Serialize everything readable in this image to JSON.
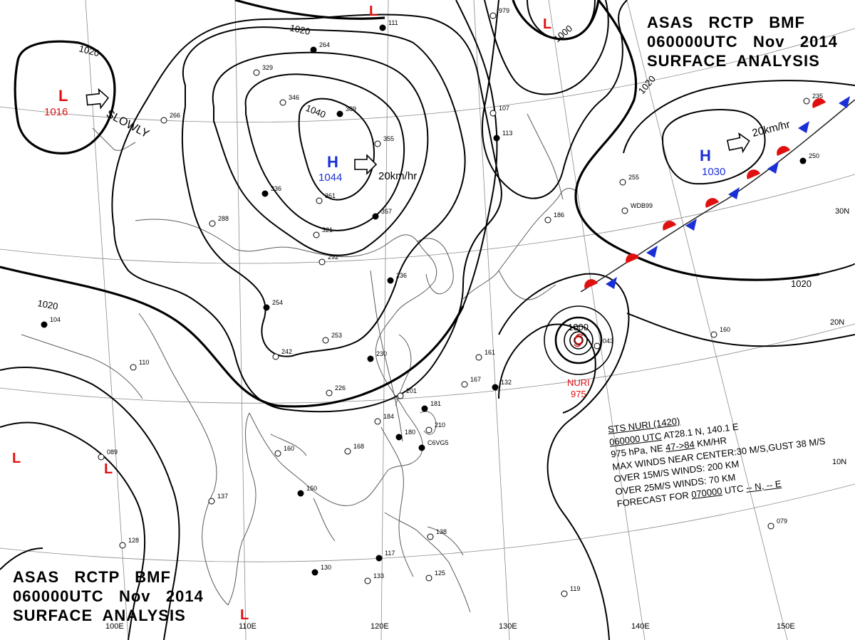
{
  "header": {
    "line1": "ASAS   RCTP   BMF",
    "line2": "060000UTC   Nov   2014",
    "line3": "SURFACE  ANALYSIS"
  },
  "colors": {
    "low": "#e01010",
    "high": "#1a2fd6",
    "warm_front": "#e01010",
    "cold_front": "#1a2fd6",
    "isobar": "#000000",
    "grid": "#777777",
    "coast": "#555555"
  },
  "pressure_centers": [
    {
      "type": "L",
      "value": "1016"
    },
    {
      "type": "H",
      "value": "1044"
    },
    {
      "type": "H",
      "value": "1030"
    },
    {
      "type": "L",
      "value": ""
    },
    {
      "type": "L",
      "value": ""
    },
    {
      "type": "L",
      "value": ""
    },
    {
      "type": "L",
      "value": ""
    },
    {
      "type": "L",
      "value": ""
    }
  ],
  "motion": [
    {
      "label": "SLOWLY"
    },
    {
      "label": "20km/hr"
    },
    {
      "label": "20km/hr"
    }
  ],
  "isobar_labels": [
    "1020",
    "1020",
    "1040",
    "1000",
    "1020",
    "1020",
    "1020",
    "1000"
  ],
  "typhoon": {
    "name": "NURI",
    "pressure": "975",
    "info": {
      "l1": "STS  NURI  (1420)",
      "l2a": "060000 UTC",
      "l2b": "  AT28.1 N, 140.1 E",
      "l3a": "975 hPa, NE  ",
      "l3b": "47->84",
      "l3c": " KM/HR",
      "l4": "MAX WINDS NEAR CENTER:30 M/S,GUST 38 M/S",
      "l5": "OVER 15M/S WINDS: 200 KM",
      "l6": "OVER 25M/S WINDS: 70 KM",
      "l7a": "FORECAST FOR ",
      "l7b": "070000",
      "l7c": " UTC ",
      "l7d": "-- N, -- E"
    }
  },
  "longitude_labels": [
    "100E",
    "110E",
    "120E",
    "130E",
    "140E",
    "150E"
  ],
  "latitude_labels": [
    "30N",
    "20N",
    "10N"
  ],
  "station_numbers": [
    "264",
    "329",
    "346",
    "389",
    "355",
    "266",
    "336",
    "361",
    "288",
    "357",
    "321",
    "292",
    "254",
    "253",
    "242",
    "230",
    "226",
    "201",
    "181",
    "184",
    "210",
    "180",
    "168",
    "160",
    "150",
    "137",
    "133",
    "130",
    "125",
    "119",
    "117",
    "089",
    "079",
    "104",
    "110",
    "107",
    "113",
    "186",
    "255",
    "250",
    "161",
    "167",
    "132",
    "138",
    "128",
    "236",
    "160",
    "043",
    "111",
    "979",
    "235",
    "C6VG5",
    "WDB99"
  ]
}
